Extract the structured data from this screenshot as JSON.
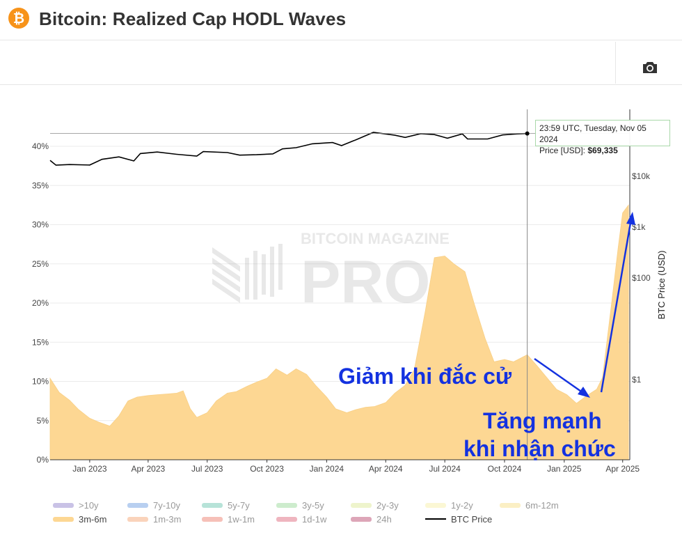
{
  "header": {
    "logo_symbol": "₿",
    "title": "Bitcoin: Realized Cap HODL Waves"
  },
  "toolbar": {
    "camera_icon": "camera-icon"
  },
  "tooltip": {
    "time": "23:59 UTC, Tuesday, Nov 05 2024",
    "price_label": "Price [USD]:",
    "price_value": "$69,335"
  },
  "watermark": {
    "line1": "BITCOIN MAGAZINE",
    "line2": "PRO"
  },
  "annotations": {
    "fall": "Giảm khi đắc cử",
    "rise_1": "Tăng mạnh",
    "rise_2": "khi nhận chức"
  },
  "legend": [
    {
      "label": ">10y",
      "color": "#c9c2e6",
      "active": false
    },
    {
      "label": "7y-10y",
      "color": "#b8cff0",
      "active": false
    },
    {
      "label": "5y-7y",
      "color": "#b7e3d8",
      "active": false
    },
    {
      "label": "3y-5y",
      "color": "#cdeccd",
      "active": false
    },
    {
      "label": "2y-3y",
      "color": "#eef4cc",
      "active": false
    },
    {
      "label": "1y-2y",
      "color": "#fbf7d4",
      "active": false
    },
    {
      "label": "6m-12m",
      "color": "#fbefc4",
      "active": false
    },
    {
      "label": "3m-6m",
      "color": "#fdd793",
      "active": true
    },
    {
      "label": "1m-3m",
      "color": "#fad3bb",
      "active": false
    },
    {
      "label": "1w-1m",
      "color": "#f6c0b8",
      "active": false
    },
    {
      "label": "1d-1w",
      "color": "#efb5bf",
      "active": false
    },
    {
      "label": "24h",
      "color": "#dda6b8",
      "active": false
    },
    {
      "label": "BTC Price",
      "color": "#000000",
      "active": true,
      "line": true
    }
  ],
  "chart_data": {
    "type": "area",
    "title": "Bitcoin: Realized Cap HODL Waves",
    "x_ticks": [
      "Jan 2023",
      "Apr 2023",
      "Jul 2023",
      "Oct 2023",
      "Jan 2024",
      "Apr 2024",
      "Jul 2024",
      "Oct 2024",
      "Jan 2025",
      "Apr 2025"
    ],
    "y_left": {
      "label": "",
      "ticks": [
        "0%",
        "5%",
        "10%",
        "15%",
        "20%",
        "25%",
        "30%",
        "35%",
        "40%"
      ],
      "range": [
        0,
        44
      ]
    },
    "y_right": {
      "label": "BTC Price (USD)",
      "scale": "log",
      "ticks": [
        "$1",
        "$100",
        "$1k",
        "$10k"
      ],
      "tick_values": [
        1,
        100,
        1000,
        10000
      ]
    },
    "grid": true,
    "crosshair_date": "2024-11-05",
    "series": [
      {
        "name": "3m-6m",
        "color": "#fdd793",
        "points": [
          [
            "2022-11-01",
            10.4
          ],
          [
            "2022-11-15",
            8.6
          ],
          [
            "2022-12-01",
            7.6
          ],
          [
            "2022-12-15",
            6.4
          ],
          [
            "2023-01-01",
            5.3
          ],
          [
            "2023-01-15",
            4.8
          ],
          [
            "2023-02-01",
            4.3
          ],
          [
            "2023-02-15",
            5.6
          ],
          [
            "2023-03-01",
            7.5
          ],
          [
            "2023-03-15",
            8.0
          ],
          [
            "2023-04-01",
            8.2
          ],
          [
            "2023-04-15",
            8.3
          ],
          [
            "2023-05-01",
            8.4
          ],
          [
            "2023-05-15",
            8.5
          ],
          [
            "2023-05-25",
            8.8
          ],
          [
            "2023-06-05",
            6.5
          ],
          [
            "2023-06-15",
            5.4
          ],
          [
            "2023-07-01",
            6.0
          ],
          [
            "2023-07-15",
            7.5
          ],
          [
            "2023-08-01",
            8.5
          ],
          [
            "2023-08-15",
            8.7
          ],
          [
            "2023-09-01",
            9.4
          ],
          [
            "2023-09-15",
            9.9
          ],
          [
            "2023-10-01",
            10.4
          ],
          [
            "2023-10-15",
            11.6
          ],
          [
            "2023-11-01",
            10.8
          ],
          [
            "2023-11-15",
            11.6
          ],
          [
            "2023-12-01",
            10.9
          ],
          [
            "2023-12-15",
            9.5
          ],
          [
            "2024-01-01",
            8.0
          ],
          [
            "2024-01-15",
            6.5
          ],
          [
            "2024-02-01",
            6.0
          ],
          [
            "2024-02-15",
            6.4
          ],
          [
            "2024-03-01",
            6.7
          ],
          [
            "2024-03-15",
            6.8
          ],
          [
            "2024-04-01",
            7.3
          ],
          [
            "2024-04-15",
            8.5
          ],
          [
            "2024-05-01",
            9.5
          ],
          [
            "2024-05-15",
            11.5
          ],
          [
            "2024-06-01",
            19.0
          ],
          [
            "2024-06-15",
            25.8
          ],
          [
            "2024-07-01",
            26.0
          ],
          [
            "2024-07-15",
            25.0
          ],
          [
            "2024-08-01",
            24.0
          ],
          [
            "2024-08-15",
            20.0
          ],
          [
            "2024-09-01",
            15.5
          ],
          [
            "2024-09-15",
            12.5
          ],
          [
            "2024-10-01",
            12.8
          ],
          [
            "2024-10-15",
            12.5
          ],
          [
            "2024-11-05",
            13.4
          ],
          [
            "2024-11-20",
            12.0
          ],
          [
            "2024-12-05",
            10.5
          ],
          [
            "2024-12-20",
            9.0
          ],
          [
            "2025-01-05",
            8.3
          ],
          [
            "2025-01-20",
            7.2
          ],
          [
            "2025-02-05",
            8.2
          ],
          [
            "2025-02-20",
            9.0
          ],
          [
            "2025-03-01",
            10.5
          ],
          [
            "2025-03-15",
            20.0
          ],
          [
            "2025-03-25",
            27.0
          ],
          [
            "2025-04-01",
            31.5
          ],
          [
            "2025-04-10",
            32.5
          ]
        ]
      },
      {
        "name": "BTC Price",
        "color": "#000000",
        "axis": "right",
        "points": [
          [
            "2022-11-01",
            20500
          ],
          [
            "2022-11-10",
            16500
          ],
          [
            "2022-12-01",
            17000
          ],
          [
            "2023-01-01",
            16600
          ],
          [
            "2023-01-20",
            21500
          ],
          [
            "2023-02-15",
            24000
          ],
          [
            "2023-03-10",
            20000
          ],
          [
            "2023-03-20",
            28000
          ],
          [
            "2023-04-15",
            30000
          ],
          [
            "2023-05-15",
            27000
          ],
          [
            "2023-06-15",
            25000
          ],
          [
            "2023-06-25",
            30500
          ],
          [
            "2023-08-01",
            29200
          ],
          [
            "2023-08-20",
            26000
          ],
          [
            "2023-09-15",
            26500
          ],
          [
            "2023-10-10",
            27500
          ],
          [
            "2023-10-25",
            34500
          ],
          [
            "2023-11-15",
            36500
          ],
          [
            "2023-12-10",
            43500
          ],
          [
            "2024-01-10",
            46000
          ],
          [
            "2024-01-24",
            40000
          ],
          [
            "2024-02-15",
            52000
          ],
          [
            "2024-03-13",
            73000
          ],
          [
            "2024-04-15",
            64000
          ],
          [
            "2024-05-01",
            58000
          ],
          [
            "2024-05-25",
            69000
          ],
          [
            "2024-06-15",
            66000
          ],
          [
            "2024-07-05",
            56000
          ],
          [
            "2024-07-28",
            68000
          ],
          [
            "2024-08-05",
            54000
          ],
          [
            "2024-09-05",
            54000
          ],
          [
            "2024-09-28",
            65000
          ],
          [
            "2024-10-20",
            68000
          ],
          [
            "2024-11-05",
            69335
          ]
        ]
      }
    ],
    "tooltip": {
      "date": "2024-11-05",
      "price_usd": 69335
    }
  }
}
